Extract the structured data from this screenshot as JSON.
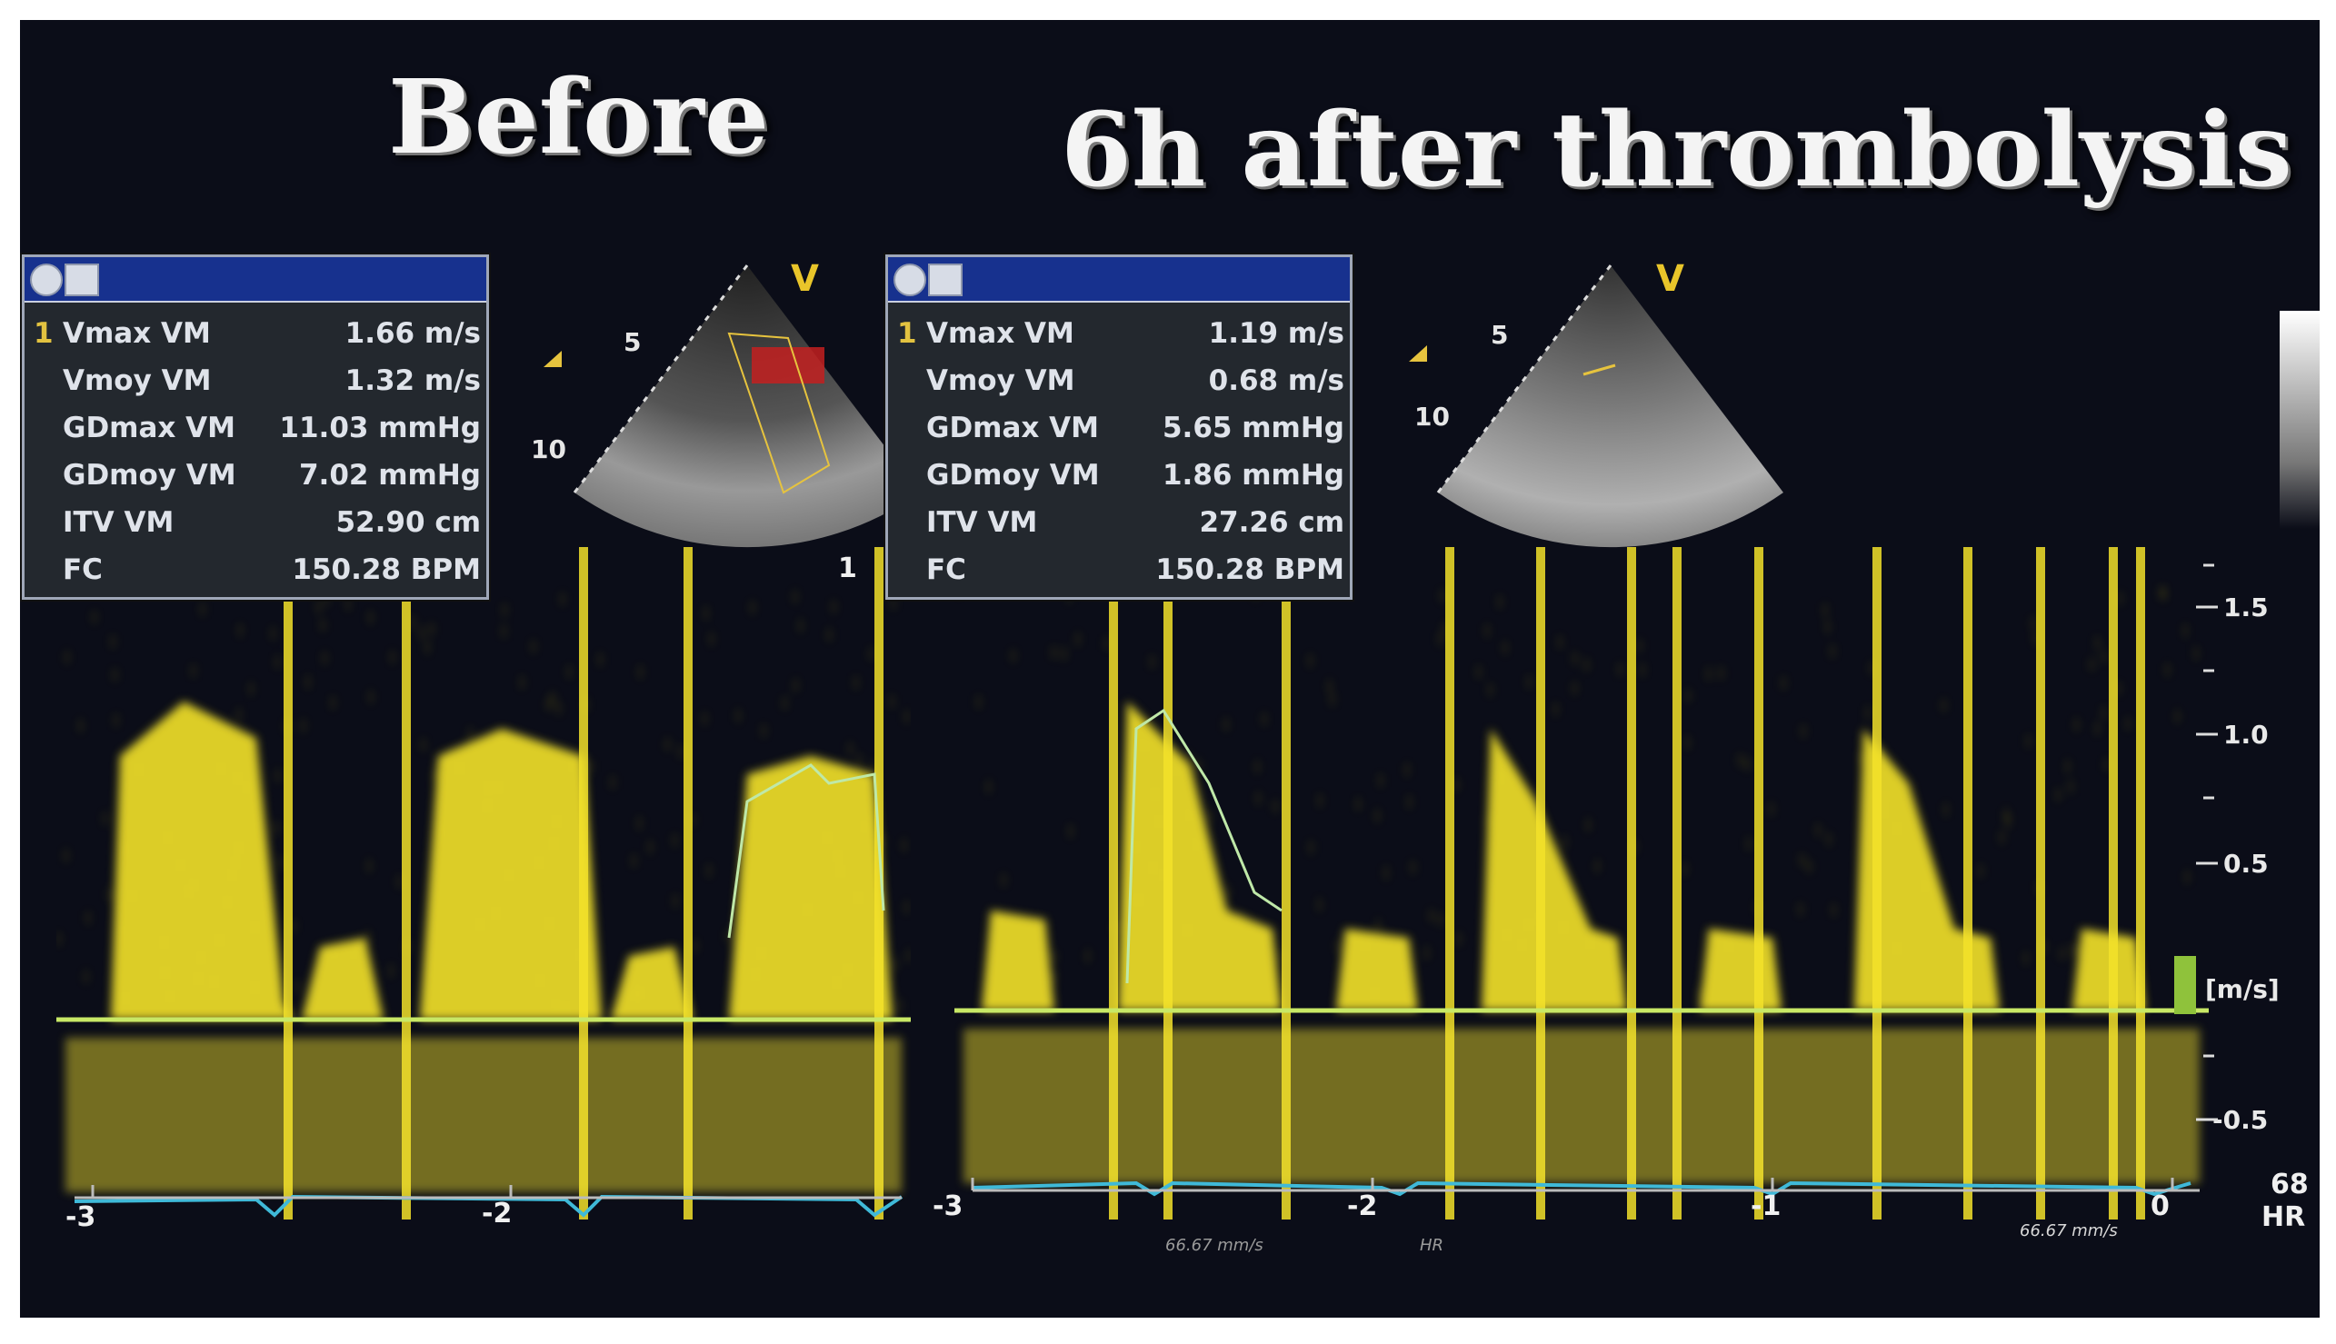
{
  "titles": {
    "before": "Before",
    "after": "6h after thrombolysis"
  },
  "panel_before": {
    "rows": [
      {
        "idx": "1",
        "label": "Vmax VM",
        "value": "1.66 m/s"
      },
      {
        "idx": "",
        "label": "Vmoy VM",
        "value": "1.32 m/s"
      },
      {
        "idx": "",
        "label": "GDmax VM",
        "value": "11.03 mmHg"
      },
      {
        "idx": "",
        "label": "GDmoy VM",
        "value": "7.02 mmHg"
      },
      {
        "idx": "",
        "label": "ITV VM",
        "value": "52.90 cm"
      },
      {
        "idx": "",
        "label": "FC",
        "value": "150.28 BPM"
      }
    ],
    "cursor_mark": "1"
  },
  "panel_after": {
    "rows": [
      {
        "idx": "1",
        "label": "Vmax VM",
        "value": "1.19 m/s"
      },
      {
        "idx": "",
        "label": "Vmoy VM",
        "value": "0.68 m/s"
      },
      {
        "idx": "",
        "label": "GDmax VM",
        "value": "5.65 mmHg"
      },
      {
        "idx": "",
        "label": "GDmoy VM",
        "value": "1.86 mmHg"
      },
      {
        "idx": "",
        "label": "ITV VM",
        "value": "27.26 cm"
      },
      {
        "idx": "",
        "label": "FC",
        "value": "150.28 BPM"
      }
    ]
  },
  "sector": {
    "v_mark": "V",
    "depth_5": "5",
    "depth_10": "10"
  },
  "velocity_scale": {
    "ticks": [
      "1.5",
      "1.0",
      "0.5",
      "-0.5"
    ],
    "unit": "[m/s]"
  },
  "time_axis_before": [
    "-3",
    "-2"
  ],
  "time_axis_after": [
    "-3",
    "-2",
    "-1",
    "0"
  ],
  "hr": {
    "value": "68",
    "label": "HR"
  },
  "sweep_speed": "66.67 mm/s",
  "sweep_speed_before": "66.67 mm/s",
  "hr_small": "HR",
  "colors": {
    "doppler_yellow": "#f3e22a",
    "baseline": "#c8e866",
    "ecg": "#3fb9d8",
    "panel_header": "#17318e"
  }
}
